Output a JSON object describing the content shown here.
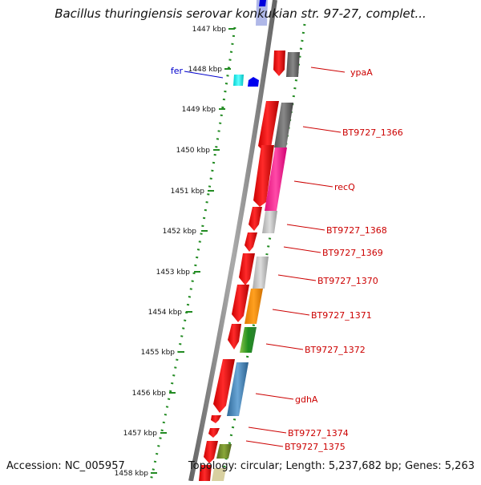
{
  "title": "Bacillus thuringiensis serovar konkukian str. 97-27, complet...",
  "accession": "Accession: NC_005957",
  "topology": "Topology: circular; Length: 5,237,682 bp; Genes: 5,263",
  "ruler": {
    "unit": "kbp",
    "ticks": [
      "1447 kbp",
      "1448 kbp",
      "1449 kbp",
      "1450 kbp",
      "1451 kbp",
      "1452 kbp",
      "1453 kbp",
      "1454 kbp",
      "1455 kbp",
      "1456 kbp",
      "1457 kbp",
      "1458 kbp"
    ]
  },
  "colors": {
    "label_red": "#cc0000",
    "label_blue": "#0000cc",
    "ruler_green": "#228b22",
    "backbone": "#808080"
  },
  "genes": [
    {
      "name": "fer",
      "label_color": "blue",
      "product_color": "#00e5e5"
    },
    {
      "name": "ypaA",
      "label_color": "red",
      "product_color": "#666666"
    },
    {
      "name": "BT9727_1366",
      "label_color": "red",
      "product_color": "#6e6e6e"
    },
    {
      "name": "recQ",
      "label_color": "red",
      "product_color": "#ff1493"
    },
    {
      "name": "BT9727_1368",
      "label_color": "red",
      "product_color": "#c0c0c0"
    },
    {
      "name": "BT9727_1369",
      "label_color": "red",
      "product_color": "#ffffff"
    },
    {
      "name": "BT9727_1370",
      "label_color": "red",
      "product_color": "#c0c0c0"
    },
    {
      "name": "BT9727_1371",
      "label_color": "red",
      "product_color": "#ff8c00"
    },
    {
      "name": "BT9727_1372",
      "label_color": "red",
      "product_color": "#2e8b2e"
    },
    {
      "name": "gdhA",
      "label_color": "red",
      "product_color": "#4682b4"
    },
    {
      "name": "BT9727_1374",
      "label_color": "red",
      "product_color": "#ffffff"
    },
    {
      "name": "BT9727_1375",
      "label_color": "red",
      "product_color": "#6b8e23"
    }
  ]
}
